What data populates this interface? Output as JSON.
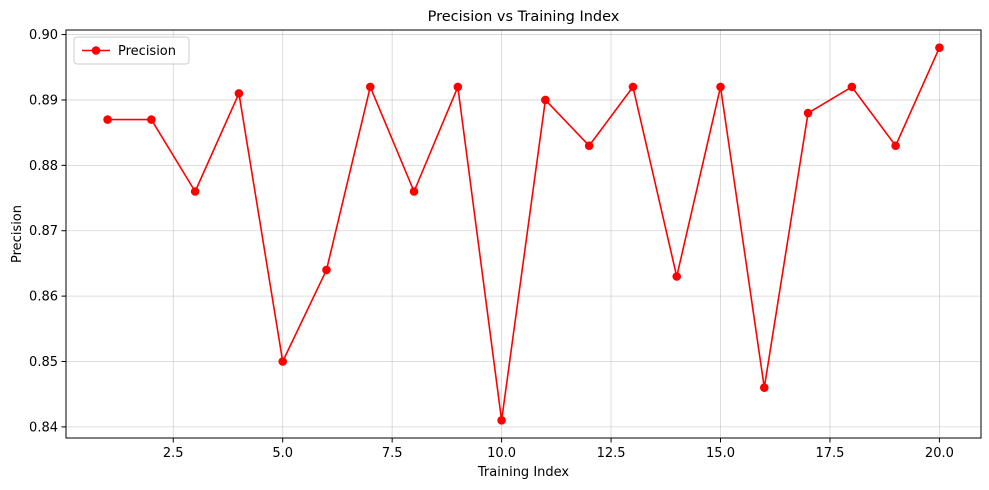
{
  "chart_data": {
    "type": "line",
    "title": "Precision vs Training Index",
    "xlabel": "Training Index",
    "ylabel": "Precision",
    "xlim": [
      0.05,
      20.95
    ],
    "ylim": [
      0.8383,
      0.9007
    ],
    "grid": true,
    "legend_position": "top-left",
    "x_ticks": [
      2.5,
      5.0,
      7.5,
      10.0,
      12.5,
      15.0,
      17.5,
      20.0
    ],
    "x_tick_labels": [
      "2.5",
      "5.0",
      "7.5",
      "10.0",
      "12.5",
      "15.0",
      "17.5",
      "20.0"
    ],
    "y_ticks": [
      0.84,
      0.85,
      0.86,
      0.87,
      0.88,
      0.89,
      0.9
    ],
    "y_tick_labels": [
      "0.84",
      "0.85",
      "0.86",
      "0.87",
      "0.88",
      "0.89",
      "0.90"
    ],
    "series": [
      {
        "name": "Precision",
        "color": "#ff0000",
        "marker": "circle",
        "x": [
          1,
          2,
          3,
          4,
          5,
          6,
          7,
          8,
          9,
          10,
          11,
          12,
          13,
          14,
          15,
          16,
          17,
          18,
          19,
          20
        ],
        "y": [
          0.887,
          0.887,
          0.876,
          0.891,
          0.85,
          0.864,
          0.892,
          0.876,
          0.892,
          0.841,
          0.89,
          0.883,
          0.892,
          0.863,
          0.892,
          0.846,
          0.888,
          0.892,
          0.883,
          0.898
        ]
      }
    ]
  }
}
